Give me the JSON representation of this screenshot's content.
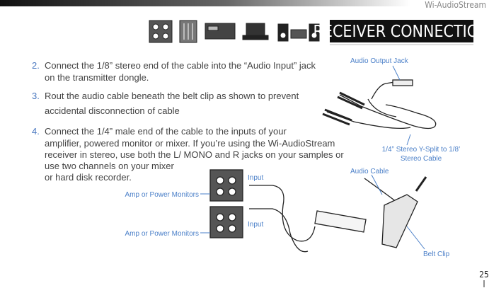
{
  "header": {
    "brand": "Wi-AudioStream",
    "section": "RECEIVER CONNECTION"
  },
  "steps": [
    {
      "number": "2.",
      "lines": [
        "Connect the 1/8” stereo end of the cable into the “Audio Input” jack",
        "on the transmitter dongle."
      ]
    },
    {
      "number": "3.",
      "lines": [
        "Rout the audio cable beneath the belt clip as shown to prevent",
        "accidental disconnection of cable"
      ]
    },
    {
      "number": "4.",
      "lines": [
        "Connect the 1/4” male end of the cable to the inputs of your",
        "amplifier, powered monitor or mixer.  If you’re using  the Wi-AudioStream",
        "receiver in stereo, use both the L/ MONO and R  jacks on your samples or",
        "use two channels on your mixer",
        "or hard disk recorder."
      ]
    }
  ],
  "labels": {
    "audio_output_jack": "Audio Output Jack",
    "y_split_cable": [
      "1/4” Stereo Y-Split to 1/8’",
      "Stereo Cable"
    ],
    "audio_cable": "Audio Cable",
    "belt_clip": "Belt Clip",
    "inputs": [
      "Input",
      "Input"
    ],
    "amps": [
      "Amp or Power Monitors",
      "Amp or Power Monitors"
    ]
  },
  "page_number": "25"
}
